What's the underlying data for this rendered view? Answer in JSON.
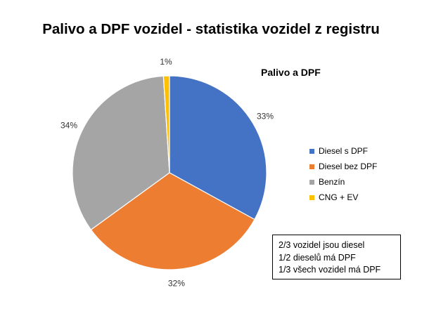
{
  "chart_data": {
    "type": "pie",
    "title": "Palivo a DPF vozidel - statistika vozidel z registru",
    "legend_title": "Palivo a DPF",
    "legend_position": "right",
    "slices": [
      {
        "name": "Diesel s DPF",
        "value": 33,
        "label": "33%",
        "color": "#4472C4"
      },
      {
        "name": "Diesel bez DPF",
        "value": 32,
        "label": "32%",
        "color": "#ED7D31"
      },
      {
        "name": "Benzín",
        "value": 34,
        "label": "34%",
        "color": "#A5A5A5"
      },
      {
        "name": "CNG + EV",
        "value": 1,
        "label": "1%",
        "color": "#FFC000"
      }
    ]
  },
  "notes": [
    "2/3 vozidel jsou diesel",
    "1/2 dieselů má DPF",
    "1/3 všech vozidel má DPF"
  ]
}
